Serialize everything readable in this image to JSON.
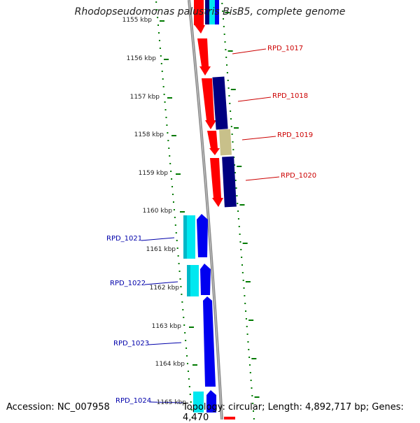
{
  "title": "Rhodopseudomonas palustris BisB5, complete genome",
  "accession": "Accession: NC_007958",
  "summary": "Topology: circular; Length: 4,892,717 bp; Genes: 4,470",
  "colors": {
    "red": "#ff0000",
    "navy": "#000080",
    "khaki": "#c8c08a",
    "cyan": "#00e8f0",
    "blue": "#0000f0",
    "tick": "#007a00",
    "backbone": "#8a8a8a",
    "label_red": "#cc0000",
    "label_blue": "#0000aa"
  },
  "ticks": [
    {
      "label": "1155 kbp"
    },
    {
      "label": "1156 kbp"
    },
    {
      "label": "1157 kbp"
    },
    {
      "label": "1158 kbp"
    },
    {
      "label": "1159 kbp"
    },
    {
      "label": "1160 kbp"
    },
    {
      "label": "1161 kbp"
    },
    {
      "label": "1162 kbp"
    },
    {
      "label": "1163 kbp"
    },
    {
      "label": "1164 kbp"
    },
    {
      "label": "1165 kbp"
    }
  ],
  "gene_labels": [
    {
      "text": "RPD_1017",
      "color": "label_red"
    },
    {
      "text": "RPD_1018",
      "color": "label_red"
    },
    {
      "text": "RPD_1019",
      "color": "label_red"
    },
    {
      "text": "RPD_1020",
      "color": "label_red"
    },
    {
      "text": "RPD_1021",
      "color": "label_blue"
    },
    {
      "text": "RPD_1022",
      "color": "label_blue"
    },
    {
      "text": "RPD_1023",
      "color": "label_blue"
    },
    {
      "text": "RPD_1024",
      "color": "label_blue"
    }
  ]
}
